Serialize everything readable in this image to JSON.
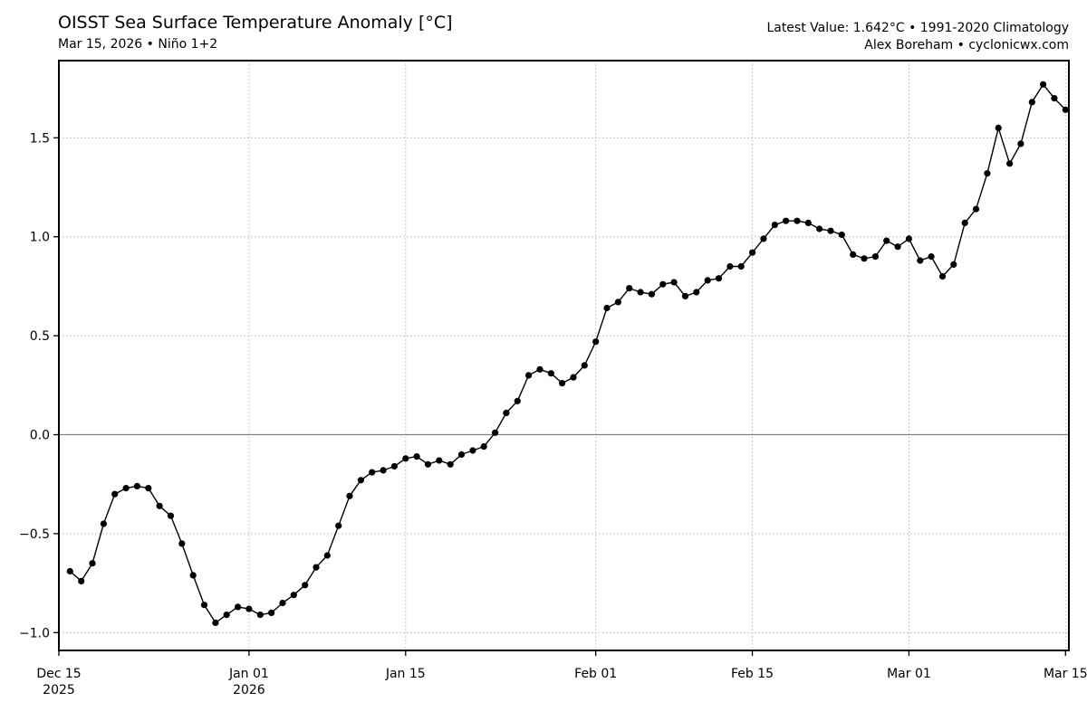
{
  "header": {
    "title": "OISST Sea Surface Temperature Anomaly [°C]",
    "subtitle": "Mar 15, 2026 • Niño 1+2",
    "latest": "Latest Value: 1.642°C • 1991-2020 Climatology",
    "credit": "Alex Boreham • cyclonicwx.com"
  },
  "chart_data": {
    "type": "line",
    "title": "OISST Sea Surface Temperature Anomaly [°C]",
    "xlabel": "",
    "ylabel": "",
    "ylim": [
      -1.09,
      1.89
    ],
    "xlim": [
      0,
      90.3
    ],
    "grid": true,
    "zero_line": true,
    "x_start_date": "2025-12-16",
    "x_ticks": [
      {
        "x": 0,
        "label": "Dec 15",
        "sub": "2025"
      },
      {
        "x": 17,
        "label": "Jan 01",
        "sub": "2026"
      },
      {
        "x": 31,
        "label": "Jan 15",
        "sub": ""
      },
      {
        "x": 48,
        "label": "Feb 01",
        "sub": ""
      },
      {
        "x": 62,
        "label": "Feb 15",
        "sub": ""
      },
      {
        "x": 76,
        "label": "Mar 01",
        "sub": ""
      },
      {
        "x": 90,
        "label": "Mar 15",
        "sub": ""
      }
    ],
    "y_ticks": [
      {
        "v": 1.5,
        "label": "1.5"
      },
      {
        "v": 1.0,
        "label": "1.0"
      },
      {
        "v": 0.5,
        "label": "0.5"
      },
      {
        "v": 0.0,
        "label": "0.0"
      },
      {
        "v": -0.5,
        "label": "−0.5"
      },
      {
        "v": -1.0,
        "label": "−1.0"
      }
    ],
    "x_start": 1,
    "series": [
      {
        "name": "Niño 1+2 SST anomaly",
        "values": [
          -0.69,
          -0.74,
          -0.65,
          -0.45,
          -0.3,
          -0.27,
          -0.26,
          -0.27,
          -0.36,
          -0.41,
          -0.55,
          -0.71,
          -0.86,
          -0.95,
          -0.91,
          -0.87,
          -0.88,
          -0.91,
          -0.9,
          -0.85,
          -0.81,
          -0.76,
          -0.67,
          -0.61,
          -0.46,
          -0.31,
          -0.23,
          -0.19,
          -0.18,
          -0.16,
          -0.12,
          -0.11,
          -0.15,
          -0.13,
          -0.15,
          -0.1,
          -0.08,
          -0.06,
          0.01,
          0.11,
          0.17,
          0.3,
          0.33,
          0.31,
          0.26,
          0.29,
          0.35,
          0.47,
          0.64,
          0.67,
          0.74,
          0.72,
          0.71,
          0.76,
          0.77,
          0.7,
          0.72,
          0.78,
          0.79,
          0.85,
          0.85,
          0.92,
          0.99,
          1.06,
          1.08,
          1.08,
          1.07,
          1.04,
          1.03,
          1.01,
          0.91,
          0.89,
          0.9,
          0.98,
          0.95,
          0.99,
          0.88,
          0.9,
          0.8,
          0.86,
          1.07,
          1.14,
          1.32,
          1.55,
          1.37,
          1.47,
          1.68,
          1.77,
          1.7,
          1.642
        ]
      }
    ]
  }
}
